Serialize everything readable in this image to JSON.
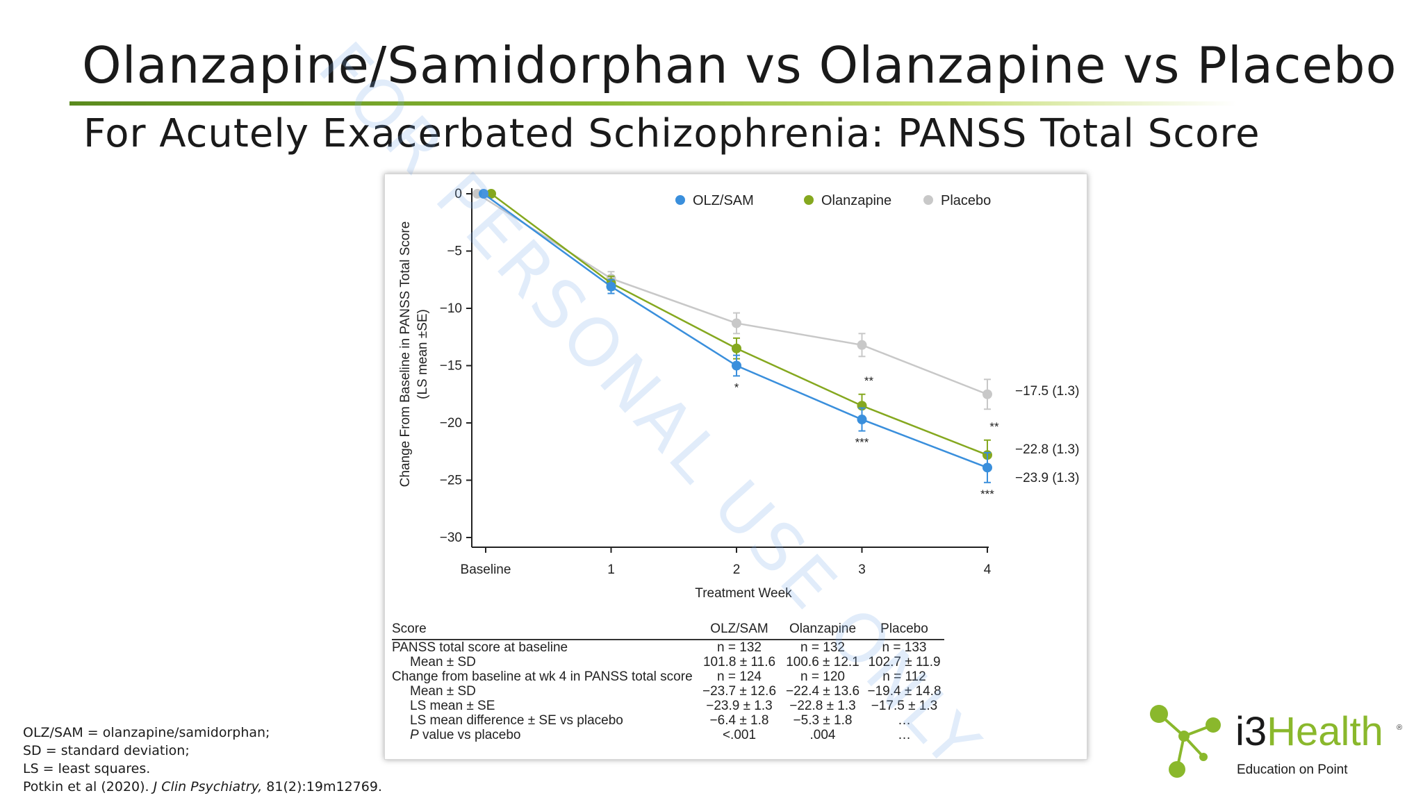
{
  "slide": {
    "title": "Olanzapine/Samidorphan vs Olanzapine vs Placebo",
    "subtitle": "For Acutely Exacerbated Schizophrenia: PANSS Total Score"
  },
  "watermark": "FOR PERSONAL USE ONLY",
  "chart_data": {
    "type": "line",
    "xlabel": "Treatment Week",
    "ylabel_line1": "Change From Baseline in PANSS Total Score",
    "ylabel_line2": "(LS mean ±SE)",
    "categories": [
      "Baseline",
      "1",
      "2",
      "3",
      "4"
    ],
    "x": [
      0,
      1,
      2,
      3,
      4
    ],
    "yticks": [
      "0",
      "−5",
      "−10",
      "−15",
      "−20",
      "−25",
      "−30"
    ],
    "ytick_values": [
      0,
      -5,
      -10,
      -15,
      -20,
      -25,
      -30
    ],
    "ylim": [
      -30,
      0
    ],
    "grid": false,
    "legend_position": "top-right",
    "series": [
      {
        "name": "OLZ/SAM",
        "color": "#3a8fdc",
        "values": [
          0,
          -8.1,
          -15.0,
          -19.7,
          -23.9
        ],
        "se": [
          0,
          0.6,
          0.9,
          1.0,
          1.3
        ],
        "significance": [
          "",
          "",
          "*",
          "***",
          "***"
        ],
        "end_label": "−23.9 (1.3)"
      },
      {
        "name": "Olanzapine",
        "color": "#85a81f",
        "values": [
          0,
          -7.8,
          -13.5,
          -18.5,
          -22.8
        ],
        "se": [
          0,
          0.6,
          0.9,
          1.0,
          1.3
        ],
        "significance": [
          "",
          "",
          "",
          "**",
          "**"
        ],
        "end_label": "−22.8 (1.3)"
      },
      {
        "name": "Placebo",
        "color": "#c8c8c8",
        "values": [
          0,
          -7.4,
          -11.3,
          -13.2,
          -17.5
        ],
        "se": [
          0,
          0.6,
          0.9,
          1.0,
          1.3
        ],
        "significance": [
          "",
          "",
          "",
          "",
          ""
        ],
        "end_label": "−17.5 (1.3)"
      }
    ]
  },
  "table": {
    "header": [
      "Score",
      "OLZ/SAM",
      "Olanzapine",
      "Placebo"
    ],
    "rows": [
      {
        "label": "PANSS total score at baseline",
        "indent": false,
        "italic_p": false,
        "cells": [
          "n = 132",
          "n = 132",
          "n = 133"
        ]
      },
      {
        "label": "Mean ± SD",
        "indent": true,
        "italic_p": false,
        "cells": [
          "101.8 ± 11.6",
          "100.6 ± 12.1",
          "102.7 ± 11.9"
        ]
      },
      {
        "label": "Change from baseline at wk 4 in PANSS total score",
        "indent": false,
        "italic_p": false,
        "cells": [
          "n = 124",
          "n = 120",
          "n = 112"
        ]
      },
      {
        "label": "Mean ± SD",
        "indent": true,
        "italic_p": false,
        "cells": [
          "−23.7 ± 12.6",
          "−22.4 ± 13.6",
          "−19.4 ± 14.8"
        ]
      },
      {
        "label": "LS mean ± SE",
        "indent": true,
        "italic_p": false,
        "cells": [
          "−23.9 ± 1.3",
          "−22.8 ± 1.3",
          "−17.5 ± 1.3"
        ]
      },
      {
        "label": "LS mean difference ± SE vs placebo",
        "indent": true,
        "italic_p": false,
        "cells": [
          "−6.4 ± 1.8",
          "−5.3 ± 1.8",
          "…"
        ]
      },
      {
        "label": "P value vs placebo",
        "indent": true,
        "italic_p": true,
        "cells": [
          "<.001",
          ".004",
          "…"
        ]
      }
    ]
  },
  "footnotes": {
    "line1": "OLZ/SAM = olanzapine/samidorphan;",
    "line2": "SD = standard deviation;",
    "line3": "LS = least squares.",
    "citation_authors": "Potkin et al (2020). ",
    "citation_journal": "J Clin Psychiatry,",
    "citation_rest": " 81(2):19m12769."
  },
  "logo": {
    "word_prefix": "i3",
    "word_brand": "Health",
    "registered": "®",
    "tagline": "Education on Point",
    "node_color": "#8ab82c"
  }
}
